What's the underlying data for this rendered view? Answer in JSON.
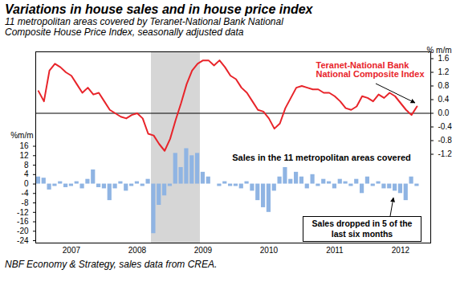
{
  "chart_data": {
    "type": "bar",
    "title": "Variations in house sales and in house price index",
    "subtitle": "11 metropolitan areas covered by Teranet-National Bank National Composite House Price Index, seasonally adjusted data",
    "caption": "NBF Economy & Strategy, sales data from CREA.",
    "ylabel": "%m/m",
    "y2label": "% m/m",
    "categories": [
      null,
      null,
      null,
      null,
      null,
      null,
      "2007",
      null,
      null,
      null,
      null,
      null,
      null,
      null,
      null,
      null,
      null,
      null,
      "2008",
      null,
      null,
      null,
      null,
      null,
      null,
      null,
      null,
      null,
      null,
      null,
      "2009",
      null,
      null,
      null,
      null,
      null,
      null,
      null,
      null,
      null,
      null,
      null,
      "2010",
      null,
      null,
      null,
      null,
      null,
      null,
      null,
      null,
      null,
      null,
      null,
      "2011",
      null,
      null,
      null,
      null,
      null,
      null,
      null,
      null,
      null,
      null,
      null,
      "2012",
      null,
      null,
      null,
      null,
      null
    ],
    "shaded": [
      false,
      false,
      false,
      false,
      false,
      false,
      false,
      false,
      false,
      false,
      false,
      false,
      false,
      false,
      false,
      false,
      false,
      false,
      false,
      false,
      false,
      true,
      true,
      true,
      true,
      true,
      true,
      true,
      true,
      true,
      false,
      false,
      false,
      false,
      false,
      false,
      false,
      false,
      false,
      false,
      false,
      false,
      false,
      false,
      false,
      false,
      false,
      false,
      false,
      false,
      false,
      false,
      false,
      false,
      false,
      false,
      false,
      false,
      false,
      false,
      false,
      false,
      false,
      false,
      false,
      false,
      false,
      false,
      false,
      false,
      false,
      false
    ],
    "series": [
      {
        "name": "Sales in the 11 metropolitan areas covered",
        "type": "bar",
        "color": "#8fb4e3",
        "values": [
          3,
          2.5,
          -2.5,
          -1,
          1,
          -1.5,
          -1,
          1,
          -2,
          2,
          6,
          -1.5,
          -2,
          -7,
          -2,
          1,
          -3,
          -1,
          1,
          -1,
          2,
          -21,
          -9,
          -5,
          -1,
          13,
          7,
          15,
          12,
          13,
          5,
          3,
          0,
          -1,
          1,
          -1,
          -1,
          -2,
          1,
          -3,
          -7,
          -10,
          -12,
          -3,
          3,
          7,
          2,
          5,
          3,
          -2,
          4,
          -1,
          2,
          1,
          -2,
          2,
          1,
          -1,
          2,
          -4,
          3,
          -1,
          1,
          -2,
          -2,
          -3,
          -4,
          -7,
          3,
          -1,
          null,
          null
        ]
      },
      {
        "name": "Teranet-National Bank\nNational Composite Index",
        "type": "line",
        "axis": "y2",
        "color": "#e8242a",
        "values": [
          0.65,
          0.35,
          1.25,
          1.45,
          1.35,
          1.2,
          1.1,
          0.85,
          0.6,
          0.75,
          0.55,
          0.6,
          0.35,
          0.1,
          0.0,
          -0.1,
          -0.15,
          -0.05,
          0.0,
          -0.15,
          -0.6,
          -0.65,
          -0.9,
          -1.1,
          -0.75,
          -0.2,
          0.3,
          0.85,
          1.25,
          1.45,
          1.55,
          1.55,
          1.4,
          1.55,
          1.35,
          1.1,
          1.0,
          0.75,
          0.6,
          0.35,
          0.1,
          0.05,
          -0.15,
          -0.45,
          -0.3,
          0.15,
          0.45,
          0.75,
          0.8,
          0.75,
          0.7,
          0.7,
          0.6,
          0.6,
          0.5,
          0.35,
          0.15,
          0.1,
          0.2,
          0.5,
          0.45,
          0.35,
          0.55,
          0.45,
          0.6,
          0.5,
          0.3,
          0.1,
          -0.05,
          0.2,
          null,
          null
        ]
      }
    ],
    "ylim": [
      -25,
      56
    ],
    "yticks": [
      -24,
      -20,
      -16,
      -12,
      -8,
      -4,
      0,
      4,
      8,
      12,
      16
    ],
    "y2lim": [
      -3.8,
      1.8
    ],
    "y2ticks": [
      -1.2,
      -0.8,
      -0.4,
      {
        "value": 0,
        "label": "0.0"
      },
      0.4,
      0.8,
      1.2,
      1.6
    ],
    "annotations": [
      "Sales dropped in 5 of the\nlast six months"
    ]
  }
}
